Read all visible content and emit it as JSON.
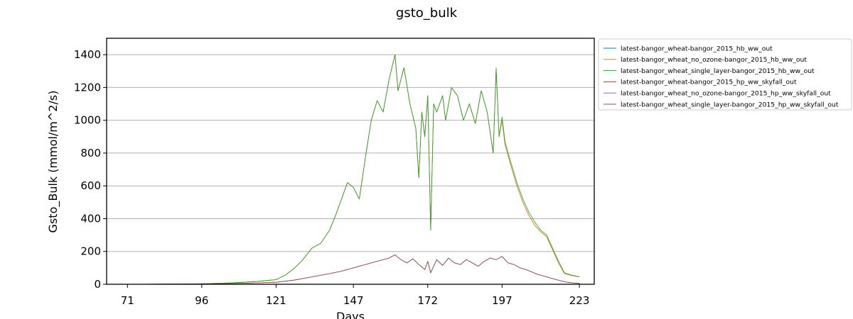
{
  "chart_data": {
    "type": "line",
    "title": "gsto_bulk",
    "xlabel": "Days",
    "ylabel": "Gsto_Bulk (mmol/m^2/s)",
    "xlim": [
      64,
      228
    ],
    "ylim": [
      0,
      1500
    ],
    "xticks": [
      71,
      96,
      121,
      147,
      172,
      197,
      223
    ],
    "yticks": [
      0,
      200,
      400,
      600,
      800,
      1000,
      1200,
      1400
    ],
    "grid": "horizontal",
    "legend_position": "outside-top-right",
    "series": [
      {
        "name": "latest-bangor_wheat-bangor_2015_hb_ww_out",
        "color": "#1f77b4",
        "group": "hb",
        "x": [
          71,
          85,
          96,
          105,
          110,
          115,
          121,
          124,
          127,
          130,
          133,
          136,
          139,
          141,
          143,
          145,
          147,
          149,
          151,
          153,
          155,
          157,
          159,
          161,
          162,
          164,
          166,
          168,
          169,
          170,
          171,
          172,
          173,
          174,
          175,
          177,
          178,
          180,
          182,
          184,
          186,
          188,
          190,
          192,
          194,
          195,
          196,
          197,
          198,
          200,
          202,
          204,
          206,
          208,
          210,
          212,
          214,
          215,
          216,
          218,
          220,
          222,
          223
        ],
        "y": [
          0,
          1,
          3,
          8,
          12,
          18,
          28,
          55,
          95,
          150,
          220,
          250,
          330,
          420,
          520,
          620,
          590,
          520,
          770,
          1000,
          1120,
          1050,
          1250,
          1400,
          1180,
          1320,
          1100,
          950,
          650,
          1050,
          900,
          1150,
          330,
          1100,
          1050,
          1150,
          1000,
          1200,
          1150,
          1000,
          1100,
          980,
          1180,
          1050,
          800,
          1310,
          900,
          1000,
          850,
          720,
          600,
          500,
          420,
          360,
          320,
          290,
          210,
          170,
          130,
          65,
          55,
          48,
          45
        ]
      },
      {
        "name": "latest-bangor_wheat_no_ozone-bangor_2015_hb_ww_out",
        "color": "#ff7f0e",
        "group": "hb",
        "x": [
          71,
          85,
          96,
          105,
          110,
          115,
          121,
          124,
          127,
          130,
          133,
          136,
          139,
          141,
          143,
          145,
          147,
          149,
          151,
          153,
          155,
          157,
          159,
          161,
          162,
          164,
          166,
          168,
          169,
          170,
          171,
          172,
          173,
          174,
          175,
          177,
          178,
          180,
          182,
          184,
          186,
          188,
          190,
          192,
          194,
          195,
          196,
          197,
          198,
          200,
          202,
          204,
          206,
          208,
          210,
          212,
          214,
          215,
          216,
          218,
          220,
          222,
          223
        ],
        "y": [
          0,
          1,
          3,
          8,
          12,
          18,
          28,
          55,
          95,
          150,
          220,
          250,
          330,
          420,
          520,
          620,
          590,
          520,
          770,
          1000,
          1120,
          1050,
          1250,
          1400,
          1180,
          1320,
          1100,
          950,
          650,
          1050,
          900,
          1150,
          330,
          1100,
          1050,
          1150,
          1000,
          1200,
          1150,
          1000,
          1100,
          980,
          1180,
          1050,
          800,
          1310,
          900,
          1000,
          850,
          720,
          600,
          500,
          420,
          360,
          320,
          290,
          210,
          170,
          130,
          65,
          55,
          48,
          45
        ]
      },
      {
        "name": "latest-bangor_wheat_single_layer-bangor_2015_hb_ww_out",
        "color": "#2ca02c",
        "group": "hb",
        "x": [
          71,
          85,
          96,
          105,
          110,
          115,
          121,
          124,
          127,
          130,
          133,
          136,
          139,
          141,
          143,
          145,
          147,
          149,
          151,
          153,
          155,
          157,
          159,
          161,
          162,
          164,
          166,
          168,
          169,
          170,
          171,
          172,
          173,
          174,
          175,
          177,
          178,
          180,
          182,
          184,
          186,
          188,
          190,
          192,
          194,
          195,
          196,
          197,
          198,
          200,
          202,
          204,
          206,
          208,
          210,
          212,
          214,
          215,
          216,
          218,
          220,
          222,
          223
        ],
        "y": [
          0,
          1,
          3,
          8,
          12,
          18,
          28,
          55,
          95,
          150,
          220,
          250,
          330,
          420,
          520,
          620,
          590,
          520,
          770,
          1000,
          1120,
          1050,
          1250,
          1400,
          1180,
          1320,
          1100,
          950,
          650,
          1050,
          900,
          1150,
          330,
          1100,
          1050,
          1150,
          1000,
          1200,
          1150,
          1000,
          1100,
          980,
          1180,
          1050,
          800,
          1320,
          900,
          1020,
          870,
          740,
          620,
          520,
          440,
          380,
          330,
          300,
          220,
          180,
          140,
          70,
          58,
          50,
          46
        ]
      },
      {
        "name": "latest-bangor_wheat-bangor_2015_hp_ww_skyfall_out",
        "color": "#d62728",
        "group": "hp",
        "x": [
          71,
          96,
          110,
          121,
          127,
          133,
          139,
          143,
          147,
          151,
          155,
          159,
          161,
          163,
          165,
          167,
          169,
          171,
          172,
          173,
          175,
          177,
          179,
          181,
          183,
          185,
          187,
          189,
          191,
          193,
          195,
          197,
          199,
          201,
          203,
          205,
          207,
          209,
          211,
          213,
          215,
          217,
          219,
          221,
          223
        ],
        "y": [
          0,
          2,
          6,
          12,
          25,
          45,
          65,
          80,
          100,
          120,
          140,
          160,
          180,
          150,
          130,
          155,
          120,
          90,
          140,
          70,
          150,
          115,
          160,
          130,
          120,
          150,
          130,
          110,
          140,
          160,
          150,
          170,
          130,
          120,
          100,
          90,
          75,
          60,
          50,
          40,
          30,
          20,
          12,
          8,
          5
        ]
      },
      {
        "name": "latest-bangor_wheat_no_ozone-bangor_2015_hp_ww_skyfall_out",
        "color": "#9467bd",
        "group": "hp",
        "x": [
          71,
          96,
          110,
          121,
          127,
          133,
          139,
          143,
          147,
          151,
          155,
          159,
          161,
          163,
          165,
          167,
          169,
          171,
          172,
          173,
          175,
          177,
          179,
          181,
          183,
          185,
          187,
          189,
          191,
          193,
          195,
          197,
          199,
          201,
          203,
          205,
          207,
          209,
          211,
          213,
          215,
          217,
          219,
          221,
          223
        ],
        "y": [
          0,
          2,
          6,
          12,
          25,
          45,
          65,
          80,
          100,
          120,
          140,
          160,
          180,
          150,
          130,
          155,
          120,
          90,
          140,
          70,
          150,
          115,
          160,
          130,
          120,
          150,
          130,
          110,
          140,
          160,
          150,
          170,
          130,
          120,
          100,
          90,
          75,
          60,
          50,
          40,
          30,
          20,
          12,
          8,
          5
        ]
      },
      {
        "name": "latest-bangor_wheat_single_layer-bangor_2015_hp_ww_skyfall_out",
        "color": "#8c564b",
        "group": "hp",
        "x": [
          71,
          96,
          110,
          121,
          127,
          133,
          139,
          143,
          147,
          151,
          155,
          159,
          161,
          163,
          165,
          167,
          169,
          171,
          172,
          173,
          175,
          177,
          179,
          181,
          183,
          185,
          187,
          189,
          191,
          193,
          195,
          197,
          199,
          201,
          203,
          205,
          207,
          209,
          211,
          213,
          215,
          217,
          219,
          221,
          223
        ],
        "y": [
          0,
          2,
          6,
          12,
          25,
          45,
          65,
          80,
          100,
          120,
          140,
          160,
          180,
          150,
          130,
          155,
          120,
          90,
          140,
          70,
          150,
          115,
          160,
          130,
          120,
          150,
          130,
          110,
          140,
          160,
          150,
          170,
          130,
          120,
          100,
          90,
          75,
          60,
          50,
          40,
          30,
          20,
          12,
          8,
          5
        ]
      }
    ]
  }
}
